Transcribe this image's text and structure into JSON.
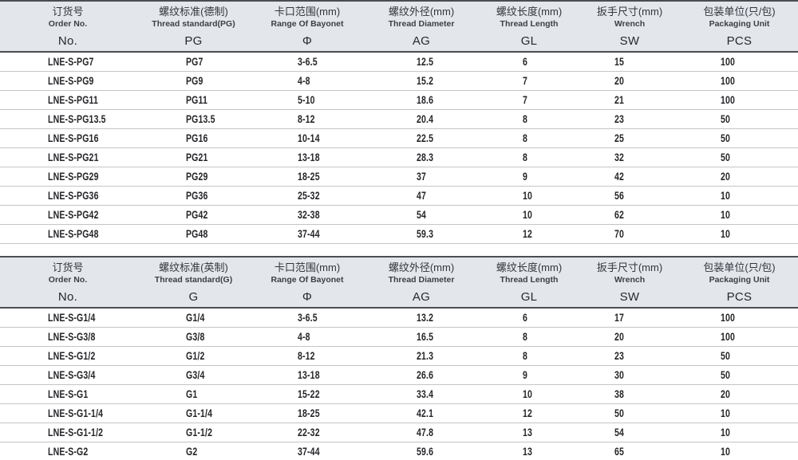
{
  "colors": {
    "header_bg": "#e3e6ea",
    "dark_border": "#4a4e53",
    "row_line": "#c3c5c8",
    "data_text": "#26262a"
  },
  "column_keys": [
    "order-no",
    "thread-standard",
    "bayonet-range",
    "thread-diameter",
    "thread-length",
    "wrench-size",
    "packaging-unit"
  ],
  "tables": [
    {
      "name": "pg-thread-table",
      "columns": [
        {
          "zh": "订货号",
          "en": "Order No.",
          "symbol": "No."
        },
        {
          "zh": "螺纹标准(德制)",
          "en": "Thread standard(PG)",
          "symbol": "PG"
        },
        {
          "zh": "卡口范围(mm)",
          "en": "Range Of Bayonet",
          "symbol": "Φ"
        },
        {
          "zh": "螺纹外径(mm)",
          "en": "Thread Diameter",
          "symbol": "AG"
        },
        {
          "zh": "螺纹长度(mm)",
          "en": "Thread Length",
          "symbol": "GL"
        },
        {
          "zh": "扳手尺寸(mm)",
          "en": "Wrench",
          "symbol": "SW"
        },
        {
          "zh": "包装单位(只/包)",
          "en": "Packaging Unit",
          "symbol": "PCS"
        }
      ],
      "rows": [
        [
          "LNE-S-PG7",
          "PG7",
          "3-6.5",
          "12.5",
          "6",
          "15",
          "100"
        ],
        [
          "LNE-S-PG9",
          "PG9",
          "4-8",
          "15.2",
          "7",
          "20",
          "100"
        ],
        [
          "LNE-S-PG11",
          "PG11",
          "5-10",
          "18.6",
          "7",
          "21",
          "100"
        ],
        [
          "LNE-S-PG13.5",
          "PG13.5",
          "8-12",
          "20.4",
          "8",
          "23",
          "50"
        ],
        [
          "LNE-S-PG16",
          "PG16",
          "10-14",
          "22.5",
          "8",
          "25",
          "50"
        ],
        [
          "LNE-S-PG21",
          "PG21",
          "13-18",
          "28.3",
          "8",
          "32",
          "50"
        ],
        [
          "LNE-S-PG29",
          "PG29",
          "18-25",
          "37",
          "9",
          "42",
          "20"
        ],
        [
          "LNE-S-PG36",
          "PG36",
          "25-32",
          "47",
          "10",
          "56",
          "10"
        ],
        [
          "LNE-S-PG42",
          "PG42",
          "32-38",
          "54",
          "10",
          "62",
          "10"
        ],
        [
          "LNE-S-PG48",
          "PG48",
          "37-44",
          "59.3",
          "12",
          "70",
          "10"
        ]
      ]
    },
    {
      "name": "g-thread-table",
      "columns": [
        {
          "zh": "订货号",
          "en": "Order No.",
          "symbol": "No."
        },
        {
          "zh": "螺纹标准(英制)",
          "en": "Thread standard(G)",
          "symbol": "G"
        },
        {
          "zh": "卡口范围(mm)",
          "en": "Range Of Bayonet",
          "symbol": "Φ"
        },
        {
          "zh": "螺纹外径(mm)",
          "en": "Thread Diameter",
          "symbol": "AG"
        },
        {
          "zh": "螺纹长度(mm)",
          "en": "Thread Length",
          "symbol": "GL"
        },
        {
          "zh": "扳手尺寸(mm)",
          "en": "Wrench",
          "symbol": "SW"
        },
        {
          "zh": "包装单位(只/包)",
          "en": "Packaging Unit",
          "symbol": "PCS"
        }
      ],
      "rows": [
        [
          "LNE-S-G1/4",
          "G1/4",
          "3-6.5",
          "13.2",
          "6",
          "17",
          "100"
        ],
        [
          "LNE-S-G3/8",
          "G3/8",
          "4-8",
          "16.5",
          "8",
          "20",
          "100"
        ],
        [
          "LNE-S-G1/2",
          "G1/2",
          "8-12",
          "21.3",
          "8",
          "23",
          "50"
        ],
        [
          "LNE-S-G3/4",
          "G3/4",
          "13-18",
          "26.6",
          "9",
          "30",
          "50"
        ],
        [
          "LNE-S-G1",
          "G1",
          "15-22",
          "33.4",
          "10",
          "38",
          "20"
        ],
        [
          "LNE-S-G1-1/4",
          "G1-1/4",
          "18-25",
          "42.1",
          "12",
          "50",
          "10"
        ],
        [
          "LNE-S-G1-1/2",
          "G1-1/2",
          "22-32",
          "47.8",
          "13",
          "54",
          "10"
        ],
        [
          "LNE-S-G2",
          "G2",
          "37-44",
          "59.6",
          "13",
          "65",
          "10"
        ]
      ]
    }
  ]
}
